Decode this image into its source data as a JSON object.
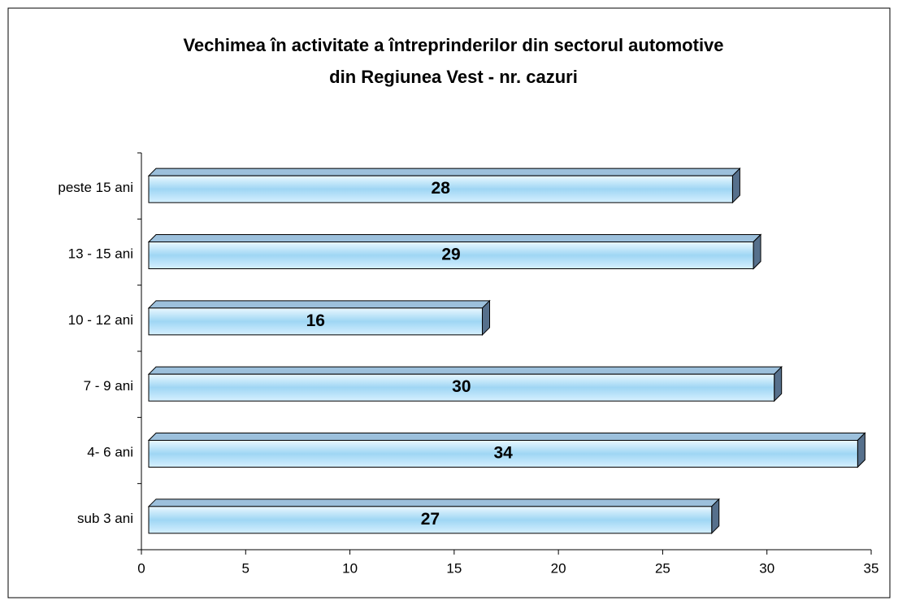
{
  "chart_data": {
    "type": "bar",
    "orientation": "horizontal",
    "title": [
      "Vechimea în activitate a întreprinderilor din sectorul automotive",
      "din Regiunea Vest - nr. cazuri"
    ],
    "categories": [
      "sub 3 ani",
      "4- 6 ani",
      "7 - 9 ani",
      "10 - 12 ani",
      "13 - 15 ani",
      "peste 15 ani"
    ],
    "values": [
      27,
      34,
      30,
      16,
      29,
      28
    ],
    "color": "#a8dcf8",
    "xlim": [
      0,
      35
    ],
    "xticks": [
      0,
      5,
      10,
      15,
      20,
      25,
      30,
      35
    ],
    "grid": false
  }
}
